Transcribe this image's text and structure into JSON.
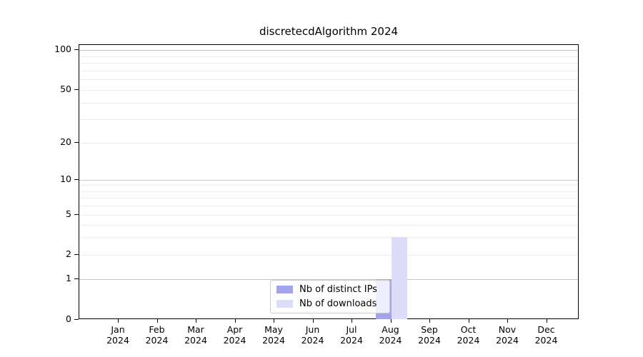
{
  "title": "discretecdAlgorithm 2024",
  "y_axis": {
    "tick_values": [
      0,
      1,
      2,
      5,
      10,
      20,
      50,
      100
    ]
  },
  "x_axis": {
    "year": "2024"
  },
  "legend": {
    "position": "lower center"
  },
  "colors": {
    "bar_distinct_ips": "#a3a3ec",
    "bar_downloads": "#dcdcf8",
    "grid_minor": "#ececec",
    "grid_major": "#c6c6c6",
    "spine": "#000000",
    "background": "#ffffff"
  },
  "chart_data": {
    "type": "bar",
    "title": "discretecdAlgorithm 2024",
    "categories": [
      "Jan 2024",
      "Feb 2024",
      "Mar 2024",
      "Apr 2024",
      "May 2024",
      "Jun 2024",
      "Jul 2024",
      "Aug 2024",
      "Sep 2024",
      "Oct 2024",
      "Nov 2024",
      "Dec 2024"
    ],
    "series": [
      {
        "name": "Nb of distinct IPs",
        "color": "#a3a3ec",
        "values": [
          0,
          0,
          0,
          0,
          0,
          0,
          0,
          1,
          0,
          0,
          0,
          0
        ]
      },
      {
        "name": "Nb of downloads",
        "color": "#dcdcf8",
        "values": [
          0,
          0,
          0,
          0,
          0,
          0,
          0,
          3,
          0,
          0,
          0,
          0
        ]
      }
    ],
    "xlabel": "",
    "ylabel": "",
    "y_scale": "symlog-like",
    "y_ticks": [
      0,
      1,
      2,
      5,
      10,
      20,
      50,
      100
    ],
    "y_major_gridlines": [
      1,
      10,
      100
    ],
    "y_minor_gridlines": [
      2,
      3,
      4,
      5,
      6,
      7,
      8,
      9,
      20,
      30,
      40,
      50,
      60,
      70,
      80,
      90
    ],
    "ylim": [
      0,
      110
    ],
    "grid": "horizontal",
    "legend_position": "lower center"
  }
}
